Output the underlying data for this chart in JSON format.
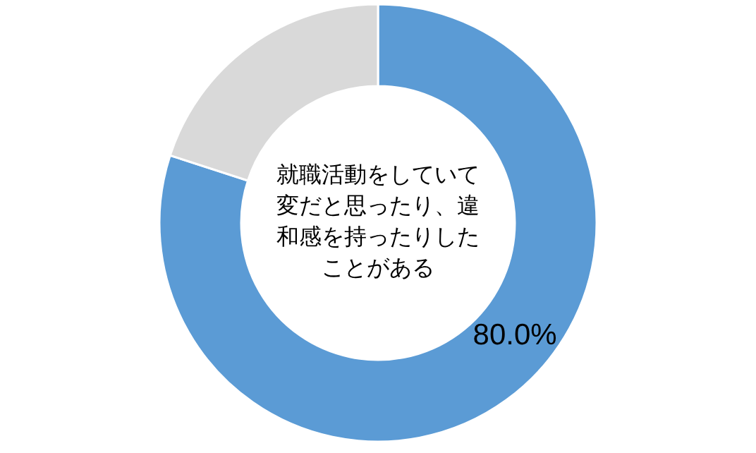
{
  "chart_data": {
    "type": "donut",
    "title": "就職活動をしていて変だと思ったり、違和感を持ったりしたことがある",
    "categories": [
      null,
      null
    ],
    "values": [
      80,
      20
    ],
    "colors": [
      "#5b9bd5",
      "#d9d9d9"
    ],
    "value_labels": [
      "80.0%",
      null
    ]
  }
}
